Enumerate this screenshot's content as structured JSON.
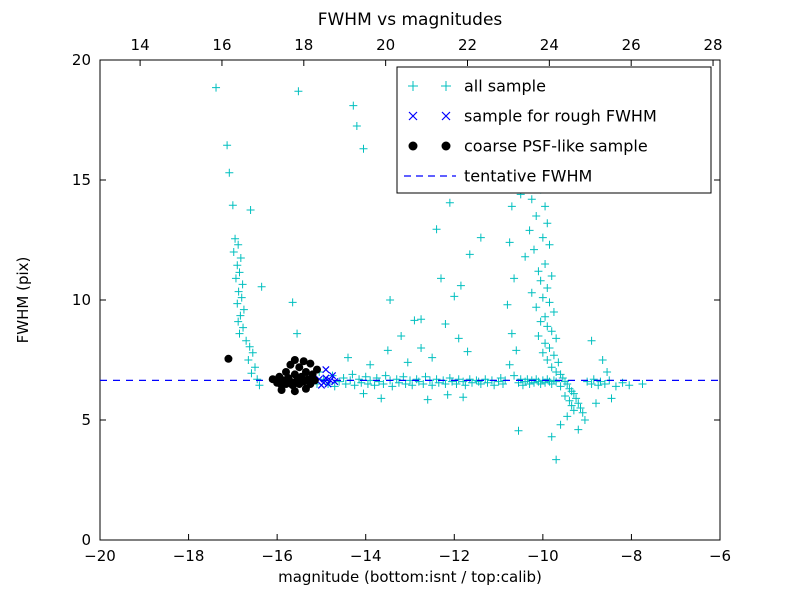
{
  "title": "FWHM vs magnitudes",
  "chart_data": {
    "type": "scatter",
    "title": "FWHM vs magnitudes",
    "xlabel": "magnitude (bottom:isnt / top:calib)",
    "ylabel": "FWHM (pix)",
    "x_bottom_axis": {
      "min": -20,
      "max": -6,
      "ticks": [
        -20,
        -18,
        -16,
        -14,
        -12,
        -10,
        -8,
        -6
      ],
      "tick_labels": [
        "−20",
        "−18",
        "−16",
        "−14",
        "−12",
        "−10",
        "−8",
        "−6"
      ]
    },
    "x_top_axis": {
      "min": 13.02,
      "max": 28.17,
      "ticks": [
        14,
        16,
        18,
        20,
        22,
        24,
        26,
        28
      ],
      "tick_labels": [
        "14",
        "16",
        "18",
        "20",
        "22",
        "24",
        "26",
        "28"
      ]
    },
    "y_axis": {
      "min": 0,
      "max": 20,
      "ticks": [
        0,
        5,
        10,
        15,
        20
      ],
      "tick_labels": [
        "0",
        "5",
        "10",
        "15",
        "20"
      ]
    },
    "tentative_fwhm": 6.65,
    "colors": {
      "all_sample": "#00bfbf",
      "rough_fwhm": "#0000ff",
      "psf_like": "#000000",
      "tentative_line": "#0000ff"
    },
    "legend": {
      "position": "upper right",
      "entries": [
        "all sample",
        "sample for rough FWHM",
        "coarse PSF-like sample",
        "tentative FWHM"
      ]
    },
    "series": [
      {
        "name": "all sample",
        "marker": "plus",
        "color": "#00bfbf",
        "points": [
          [
            -17.38,
            18.85
          ],
          [
            -17.13,
            16.45
          ],
          [
            -17.08,
            15.3
          ],
          [
            -17.0,
            13.95
          ],
          [
            -16.6,
            13.75
          ],
          [
            -16.95,
            12.55
          ],
          [
            -16.88,
            12.3
          ],
          [
            -16.98,
            12.0
          ],
          [
            -16.82,
            11.75
          ],
          [
            -16.9,
            11.45
          ],
          [
            -16.85,
            11.15
          ],
          [
            -16.93,
            10.9
          ],
          [
            -16.78,
            10.65
          ],
          [
            -16.87,
            10.35
          ],
          [
            -16.8,
            10.1
          ],
          [
            -16.9,
            9.85
          ],
          [
            -16.75,
            9.6
          ],
          [
            -16.83,
            9.35
          ],
          [
            -16.88,
            9.1
          ],
          [
            -16.77,
            8.85
          ],
          [
            -16.85,
            8.6
          ],
          [
            -16.7,
            8.3
          ],
          [
            -16.62,
            8.05
          ],
          [
            -16.55,
            7.8
          ],
          [
            -16.65,
            7.5
          ],
          [
            -16.5,
            7.2
          ],
          [
            -16.58,
            6.95
          ],
          [
            -16.45,
            6.7
          ],
          [
            -16.35,
            10.55
          ],
          [
            -16.4,
            6.45
          ],
          [
            -15.52,
            18.7
          ],
          [
            -14.28,
            18.1
          ],
          [
            -14.2,
            17.25
          ],
          [
            -14.05,
            16.3
          ],
          [
            -15.65,
            9.9
          ],
          [
            -15.55,
            8.6
          ],
          [
            -12.4,
            12.95
          ],
          [
            -12.1,
            14.05
          ],
          [
            -11.65,
            11.9
          ],
          [
            -11.85,
            10.6
          ],
          [
            -12.0,
            10.15
          ],
          [
            -11.4,
            12.6
          ],
          [
            -12.75,
            9.2
          ],
          [
            -13.45,
            10.0
          ],
          [
            -12.3,
            10.9
          ],
          [
            -15.3,
            6.6
          ],
          [
            -15.2,
            6.8
          ],
          [
            -15.1,
            6.5
          ],
          [
            -15.05,
            7.0
          ],
          [
            -14.95,
            6.7
          ],
          [
            -14.85,
            6.5
          ],
          [
            -14.75,
            6.85
          ],
          [
            -14.7,
            6.4
          ],
          [
            -14.6,
            6.6
          ],
          [
            -14.5,
            6.75
          ],
          [
            -14.45,
            6.5
          ],
          [
            -14.35,
            6.65
          ],
          [
            -14.3,
            6.9
          ],
          [
            -14.25,
            6.45
          ],
          [
            -14.15,
            6.7
          ],
          [
            -14.1,
            6.55
          ],
          [
            -14.0,
            6.8
          ],
          [
            -13.95,
            6.5
          ],
          [
            -13.9,
            6.65
          ],
          [
            -13.8,
            6.45
          ],
          [
            -13.75,
            6.75
          ],
          [
            -13.7,
            6.6
          ],
          [
            -13.6,
            6.5
          ],
          [
            -13.55,
            6.85
          ],
          [
            -13.45,
            6.65
          ],
          [
            -13.4,
            6.4
          ],
          [
            -13.3,
            6.7
          ],
          [
            -13.25,
            6.55
          ],
          [
            -13.15,
            6.8
          ],
          [
            -13.1,
            6.5
          ],
          [
            -13.0,
            6.65
          ],
          [
            -12.95,
            6.45
          ],
          [
            -12.85,
            6.7
          ],
          [
            -12.8,
            6.6
          ],
          [
            -12.7,
            6.5
          ],
          [
            -12.65,
            6.8
          ],
          [
            -12.55,
            6.65
          ],
          [
            -12.5,
            6.45
          ],
          [
            -12.4,
            6.7
          ],
          [
            -12.35,
            6.55
          ],
          [
            -12.25,
            6.65
          ],
          [
            -12.2,
            6.5
          ],
          [
            -12.1,
            6.75
          ],
          [
            -12.05,
            6.6
          ],
          [
            -11.95,
            6.5
          ],
          [
            -11.9,
            6.7
          ],
          [
            -11.8,
            6.6
          ],
          [
            -11.75,
            6.45
          ],
          [
            -11.65,
            6.7
          ],
          [
            -11.6,
            6.55
          ],
          [
            -11.5,
            6.65
          ],
          [
            -14.4,
            7.6
          ],
          [
            -13.9,
            7.3
          ],
          [
            -13.5,
            7.9
          ],
          [
            -13.2,
            8.5
          ],
          [
            -12.9,
            9.15
          ],
          [
            -12.75,
            8.0
          ],
          [
            -12.2,
            9.0
          ],
          [
            -11.9,
            8.4
          ],
          [
            -12.5,
            7.6
          ],
          [
            -11.7,
            7.85
          ],
          [
            -13.05,
            7.4
          ],
          [
            -13.65,
            5.9
          ],
          [
            -12.6,
            5.85
          ],
          [
            -11.8,
            5.95
          ],
          [
            -14.05,
            6.1
          ],
          [
            -12.15,
            6.05
          ],
          [
            -11.45,
            6.6
          ],
          [
            -11.4,
            6.5
          ],
          [
            -11.3,
            6.7
          ],
          [
            -11.25,
            6.55
          ],
          [
            -11.15,
            6.65
          ],
          [
            -11.1,
            6.45
          ],
          [
            -11.0,
            6.6
          ],
          [
            -10.95,
            6.75
          ],
          [
            -10.9,
            6.5
          ],
          [
            -10.85,
            6.65
          ],
          [
            -10.55,
            6.55
          ],
          [
            -10.5,
            6.7
          ],
          [
            -10.45,
            6.45
          ],
          [
            -10.4,
            6.6
          ],
          [
            -10.35,
            6.7
          ],
          [
            -10.3,
            6.5
          ],
          [
            -10.25,
            6.65
          ],
          [
            -10.2,
            6.55
          ],
          [
            -10.15,
            6.7
          ],
          [
            -10.1,
            6.6
          ],
          [
            -10.05,
            6.5
          ],
          [
            -10.0,
            6.65
          ],
          [
            -9.95,
            6.55
          ],
          [
            -9.9,
            6.7
          ],
          [
            -9.85,
            6.6
          ],
          [
            -9.8,
            6.5
          ],
          [
            -9.75,
            6.65
          ],
          [
            -9.7,
            6.6
          ],
          [
            -10.45,
            16.8
          ],
          [
            -10.3,
            16.3
          ],
          [
            -10.2,
            15.9
          ],
          [
            -10.35,
            15.5
          ],
          [
            -10.1,
            15.1
          ],
          [
            -10.5,
            14.4
          ],
          [
            -10.25,
            14.2
          ],
          [
            -10.05,
            14.6
          ],
          [
            -9.95,
            13.9
          ],
          [
            -10.15,
            13.5
          ],
          [
            -9.9,
            13.2
          ],
          [
            -10.3,
            12.9
          ],
          [
            -10.0,
            12.6
          ],
          [
            -9.85,
            12.3
          ],
          [
            -10.2,
            12.1
          ],
          [
            -10.4,
            11.8
          ],
          [
            -9.95,
            11.5
          ],
          [
            -10.1,
            11.2
          ],
          [
            -9.8,
            11.0
          ],
          [
            -10.05,
            10.8
          ],
          [
            -9.9,
            10.5
          ],
          [
            -10.25,
            10.3
          ],
          [
            -10.0,
            10.1
          ],
          [
            -9.85,
            9.9
          ],
          [
            -10.15,
            9.7
          ],
          [
            -9.75,
            9.5
          ],
          [
            -9.95,
            9.3
          ],
          [
            -10.05,
            9.1
          ],
          [
            -9.9,
            8.9
          ],
          [
            -9.8,
            8.7
          ],
          [
            -10.1,
            8.5
          ],
          [
            -9.7,
            8.4
          ],
          [
            -9.95,
            8.2
          ],
          [
            -9.85,
            8.0
          ],
          [
            -10.0,
            7.8
          ],
          [
            -9.75,
            7.7
          ],
          [
            -9.9,
            7.5
          ],
          [
            -9.65,
            7.4
          ],
          [
            -9.8,
            7.2
          ],
          [
            -9.7,
            7.0
          ],
          [
            -9.6,
            6.9
          ],
          [
            -9.55,
            6.75
          ],
          [
            -9.5,
            6.6
          ],
          [
            -9.45,
            6.5
          ],
          [
            -9.6,
            6.4
          ],
          [
            -9.4,
            6.3
          ],
          [
            -9.35,
            6.2
          ],
          [
            -9.3,
            6.1
          ],
          [
            -9.5,
            6.0
          ],
          [
            -9.25,
            5.9
          ],
          [
            -9.4,
            5.8
          ],
          [
            -9.2,
            5.7
          ],
          [
            -9.35,
            5.6
          ],
          [
            -9.15,
            5.5
          ],
          [
            -9.3,
            5.4
          ],
          [
            -9.1,
            5.3
          ],
          [
            -9.45,
            5.15
          ],
          [
            -9.05,
            5.0
          ],
          [
            -9.6,
            4.8
          ],
          [
            -9.2,
            4.6
          ],
          [
            -9.8,
            4.3
          ],
          [
            -9.7,
            3.35
          ],
          [
            -10.55,
            4.55
          ],
          [
            -10.7,
            13.9
          ],
          [
            -10.75,
            12.4
          ],
          [
            -10.65,
            10.9
          ],
          [
            -10.8,
            9.8
          ],
          [
            -10.7,
            8.6
          ],
          [
            -10.6,
            7.9
          ],
          [
            -10.75,
            7.3
          ],
          [
            -10.65,
            6.85
          ],
          [
            -9.0,
            6.6
          ],
          [
            -8.9,
            6.5
          ],
          [
            -8.85,
            6.7
          ],
          [
            -8.75,
            6.45
          ],
          [
            -8.7,
            6.6
          ],
          [
            -8.6,
            6.5
          ],
          [
            -8.5,
            6.65
          ],
          [
            -8.45,
            5.9
          ],
          [
            -8.8,
            5.7
          ],
          [
            -8.55,
            7.0
          ],
          [
            -8.65,
            7.5
          ],
          [
            -8.9,
            8.3
          ],
          [
            -8.35,
            6.4
          ],
          [
            -8.2,
            6.55
          ],
          [
            -8.05,
            6.45
          ],
          [
            -7.75,
            6.5
          ]
        ]
      },
      {
        "name": "sample for rough FWHM",
        "marker": "x",
        "color": "#0000ff",
        "points": [
          [
            -15.05,
            6.7
          ],
          [
            -14.95,
            6.55
          ],
          [
            -14.9,
            6.75
          ],
          [
            -14.85,
            6.5
          ],
          [
            -14.8,
            6.65
          ],
          [
            -14.75,
            6.85
          ],
          [
            -14.7,
            6.6
          ],
          [
            -14.9,
            7.1
          ],
          [
            -15.0,
            6.45
          ]
        ]
      },
      {
        "name": "coarse PSF-like sample",
        "marker": "dot",
        "color": "#000000",
        "points": [
          [
            -17.1,
            7.55
          ],
          [
            -16.1,
            6.7
          ],
          [
            -16.0,
            6.55
          ],
          [
            -15.95,
            6.8
          ],
          [
            -15.9,
            6.45
          ],
          [
            -15.85,
            6.65
          ],
          [
            -15.8,
            7.0
          ],
          [
            -15.8,
            6.5
          ],
          [
            -15.75,
            6.75
          ],
          [
            -15.7,
            6.6
          ],
          [
            -15.7,
            7.3
          ],
          [
            -15.65,
            6.45
          ],
          [
            -15.6,
            6.9
          ],
          [
            -15.6,
            7.5
          ],
          [
            -15.55,
            6.65
          ],
          [
            -15.5,
            7.2
          ],
          [
            -15.5,
            6.5
          ],
          [
            -15.45,
            6.8
          ],
          [
            -15.4,
            7.45
          ],
          [
            -15.4,
            6.6
          ],
          [
            -15.35,
            7.0
          ],
          [
            -15.3,
            6.7
          ],
          [
            -15.25,
            7.35
          ],
          [
            -15.25,
            6.5
          ],
          [
            -15.2,
            6.9
          ],
          [
            -15.15,
            6.65
          ],
          [
            -15.1,
            7.1
          ],
          [
            -15.9,
            6.25
          ],
          [
            -15.6,
            6.2
          ],
          [
            -15.35,
            6.3
          ]
        ]
      },
      {
        "name": "tentative FWHM",
        "marker": "dashed-line",
        "color": "#0000ff",
        "y": 6.65
      }
    ]
  }
}
